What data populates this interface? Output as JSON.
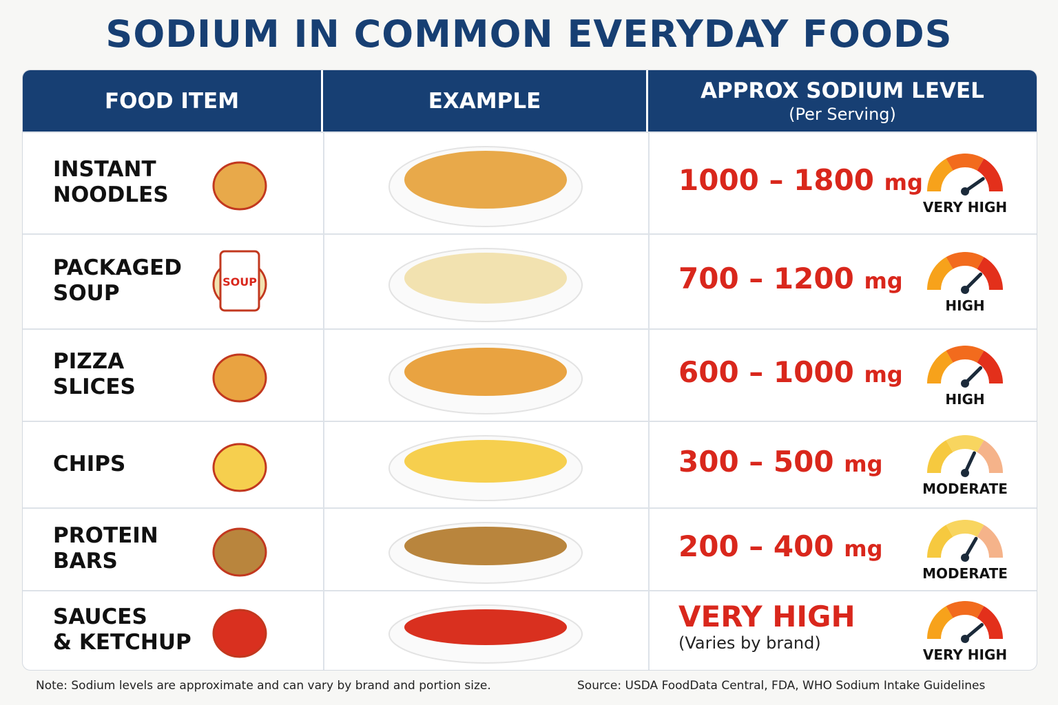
{
  "header": {
    "title": "SODIUM IN COMMON EVERYDAY FOODS"
  },
  "table": {
    "columns": [
      "FOOD ITEM",
      "EXAMPLE",
      "APPROX SODIUM LEVEL"
    ],
    "column_note": "(Per Serving)",
    "rows": [
      {
        "food": [
          "INSTANT",
          "NOODLES"
        ],
        "sodium": "1000 – 1800",
        "unit": "mg",
        "level": "VERY HIGH"
      },
      {
        "food": [
          "PACKAGED",
          "SOUP"
        ],
        "icon_label": "SOUP",
        "sodium": "700 – 1200",
        "unit": "mg",
        "level": "HIGH"
      },
      {
        "food": [
          "PIZZA",
          "SLICES"
        ],
        "sodium": "600 – 1000",
        "unit": "mg",
        "level": "HIGH"
      },
      {
        "food": [
          "CHIPS"
        ],
        "sodium": "300 – 500",
        "unit": "mg",
        "level": "MODERATE"
      },
      {
        "food": [
          "PROTEIN",
          "BARS"
        ],
        "sodium": "200 – 400",
        "unit": "mg",
        "level": "MODERATE"
      },
      {
        "food": [
          "SAUCES",
          "& KETCHUP"
        ],
        "sodium": "VERY HIGH",
        "sodium_note": "(Varies by brand)",
        "level": "VERY HIGH"
      }
    ]
  },
  "footer": {
    "note": "Note: Sodium levels are approximate and can vary by brand and portion size.",
    "source": "Source: USDA FoodData Central, FDA, WHO Sodium Intake Guidelines"
  }
}
